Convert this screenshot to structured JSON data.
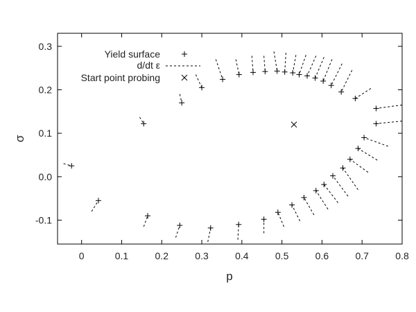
{
  "chart_data": {
    "type": "scatter",
    "title": "",
    "xlabel": "p",
    "ylabel": "σ",
    "xlim": [
      -0.06,
      0.8
    ],
    "ylim": [
      -0.155,
      0.33
    ],
    "xticks": [
      0,
      0.1,
      0.2,
      0.3,
      0.4,
      0.5,
      0.6,
      0.7,
      0.8
    ],
    "xtick_labels": [
      "0",
      "0.1",
      "0.2",
      "0.3",
      "0.4",
      "0.5",
      "0.6",
      "0.7",
      "0.8"
    ],
    "yticks": [
      -0.1,
      0.0,
      0.1,
      0.2,
      0.3
    ],
    "ytick_labels": [
      "-0.1",
      "0.0",
      "0.1",
      "0.2",
      "0.3"
    ],
    "grid": false,
    "legend_position": "top-left",
    "legend": [
      {
        "label": "Yield surface",
        "marker": "plus"
      },
      {
        "label": "d/dt ε",
        "marker": "dashed-line"
      },
      {
        "label": "Start point probing",
        "marker": "cross"
      }
    ],
    "start_point": {
      "p": 0.53,
      "sigma": 0.12
    },
    "series": [
      {
        "name": "Yield surface",
        "points": [
          [
            -0.025,
            0.025
          ],
          [
            0.042,
            -0.055
          ],
          [
            0.155,
            0.122
          ],
          [
            0.165,
            -0.09
          ],
          [
            0.25,
            0.17
          ],
          [
            0.245,
            -0.112
          ],
          [
            0.3,
            0.205
          ],
          [
            0.322,
            -0.118
          ],
          [
            0.352,
            0.224
          ],
          [
            0.392,
            -0.11
          ],
          [
            0.393,
            0.235
          ],
          [
            0.428,
            0.24
          ],
          [
            0.455,
            -0.098
          ],
          [
            0.458,
            0.242
          ],
          [
            0.488,
            0.243
          ],
          [
            0.49,
            -0.082
          ],
          [
            0.507,
            0.241
          ],
          [
            0.525,
            -0.065
          ],
          [
            0.527,
            0.239
          ],
          [
            0.543,
            0.235
          ],
          [
            0.555,
            -0.048
          ],
          [
            0.563,
            0.232
          ],
          [
            0.583,
            0.227
          ],
          [
            0.585,
            -0.032
          ],
          [
            0.603,
            0.22
          ],
          [
            0.605,
            -0.018
          ],
          [
            0.623,
            0.21
          ],
          [
            0.627,
            0.002
          ],
          [
            0.648,
            0.195
          ],
          [
            0.652,
            0.02
          ],
          [
            0.67,
            0.04
          ],
          [
            0.683,
            0.18
          ],
          [
            0.69,
            0.065
          ],
          [
            0.705,
            0.09
          ],
          [
            0.735,
            0.157
          ],
          [
            0.735,
            0.122
          ]
        ]
      },
      {
        "name": "d/dt ε",
        "vectors": [
          [
            -0.045,
            0.03,
            -0.025,
            0.025
          ],
          [
            0.025,
            -0.08,
            0.042,
            -0.055
          ],
          [
            0.145,
            0.137,
            0.155,
            0.122
          ],
          [
            0.155,
            -0.115,
            0.165,
            -0.09
          ],
          [
            0.245,
            0.19,
            0.25,
            0.17
          ],
          [
            0.235,
            -0.14,
            0.245,
            -0.112
          ],
          [
            0.285,
            0.235,
            0.3,
            0.205
          ],
          [
            0.315,
            -0.15,
            0.322,
            -0.118
          ],
          [
            0.335,
            0.27,
            0.352,
            0.224
          ],
          [
            0.39,
            -0.145,
            0.392,
            -0.11
          ],
          [
            0.385,
            0.27,
            0.393,
            0.235
          ],
          [
            0.425,
            0.278,
            0.428,
            0.24
          ],
          [
            0.455,
            -0.13,
            0.455,
            -0.098
          ],
          [
            0.455,
            0.278,
            0.458,
            0.242
          ],
          [
            0.48,
            0.288,
            0.488,
            0.243
          ],
          [
            0.505,
            -0.115,
            0.49,
            -0.082
          ],
          [
            0.51,
            0.285,
            0.507,
            0.241
          ],
          [
            0.545,
            -0.102,
            0.525,
            -0.065
          ],
          [
            0.535,
            0.28,
            0.527,
            0.239
          ],
          [
            0.56,
            0.28,
            0.543,
            0.235
          ],
          [
            0.58,
            -0.088,
            0.555,
            -0.048
          ],
          [
            0.585,
            0.278,
            0.563,
            0.232
          ],
          [
            0.605,
            0.275,
            0.583,
            0.227
          ],
          [
            0.615,
            -0.075,
            0.585,
            -0.032
          ],
          [
            0.625,
            0.27,
            0.603,
            0.22
          ],
          [
            0.64,
            -0.06,
            0.605,
            -0.018
          ],
          [
            0.65,
            0.26,
            0.623,
            0.21
          ],
          [
            0.665,
            -0.045,
            0.627,
            0.002
          ],
          [
            0.675,
            0.245,
            0.648,
            0.195
          ],
          [
            0.69,
            -0.03,
            0.652,
            0.02
          ],
          [
            0.715,
            0.01,
            0.67,
            0.04
          ],
          [
            0.722,
            0.203,
            0.683,
            0.18
          ],
          [
            0.738,
            0.038,
            0.69,
            0.065
          ],
          [
            0.765,
            0.07,
            0.705,
            0.09
          ],
          [
            0.8,
            0.165,
            0.735,
            0.157
          ],
          [
            0.8,
            0.128,
            0.735,
            0.122
          ]
        ]
      }
    ]
  }
}
